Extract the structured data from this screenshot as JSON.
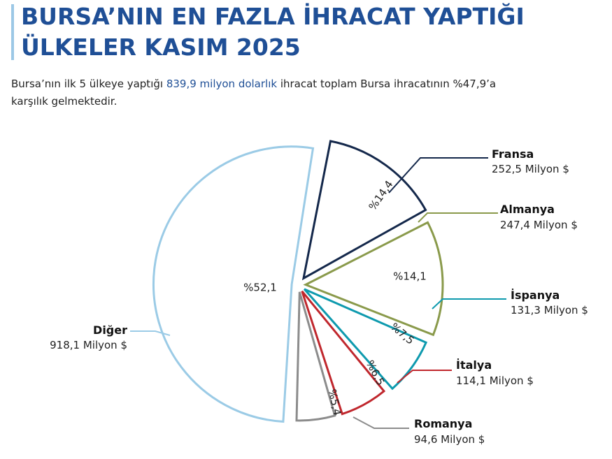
{
  "header": {
    "title_line1": "BURSA’NIN EN FAZLA İHRACAT YAPTIĞI",
    "title_line2": "ÜLKELER KASIM 2025",
    "subtitle_part1": "Bursa’nın ilk 5 ülkeye yaptığı ",
    "subtitle_highlight": "839,9 milyon dolarlık",
    "subtitle_part2": " ihracat toplam Bursa ihracatının %47,9’a",
    "subtitle_line2": "karşılık gelmektedir."
  },
  "chart_data": {
    "type": "pie",
    "slices": [
      {
        "name": "Fransa",
        "value_label": "252,5 Milyon $",
        "value": 252.5,
        "pct": 14.4,
        "pct_label": "%14,4",
        "color": "#14284b"
      },
      {
        "name": "Almanya",
        "value_label": "247,4 Milyon $",
        "value": 247.4,
        "pct": 14.1,
        "pct_label": "%14,1",
        "color": "#8a9a4b"
      },
      {
        "name": "İspanya",
        "value_label": "131,3 Milyon $",
        "value": 131.3,
        "pct": 7.5,
        "pct_label": "%7,5",
        "color": "#0e9aae"
      },
      {
        "name": "İtalya",
        "value_label": "114,1 Milyon $",
        "value": 114.1,
        "pct": 6.5,
        "pct_label": "%6,5",
        "color": "#c0272d"
      },
      {
        "name": "Romanya",
        "value_label": "94,6 Milyon $",
        "value": 94.6,
        "pct": 5.4,
        "pct_label": "%5,4",
        "color": "#8c8c8c"
      },
      {
        "name": "Diğer",
        "value_label": "918,1 Milyon $",
        "value": 918.1,
        "pct": 52.1,
        "pct_label": "%52,1",
        "color": "#9bcbe6"
      }
    ]
  }
}
